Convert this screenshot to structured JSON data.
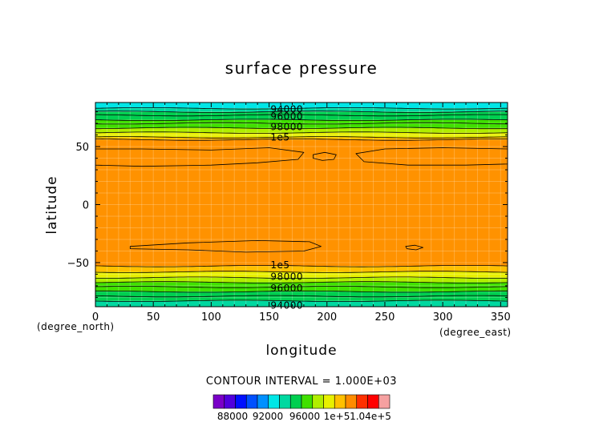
{
  "chart_data": {
    "type": "contour",
    "title": "surface pressure",
    "xlabel": "longitude",
    "ylabel": "latitude",
    "x_unit": "(degree_east)",
    "y_unit": "(degree_north)",
    "xlim": [
      0,
      356
    ],
    "ylim": [
      -88,
      88
    ],
    "x_ticks": [
      0,
      50,
      100,
      150,
      200,
      250,
      300,
      350
    ],
    "y_ticks": [
      -50,
      0,
      50
    ],
    "contour_interval_label": "CONTOUR INTERVAL = 1.000E+03",
    "pressure_by_latitude": [
      {
        "lat": -88,
        "value": 93000
      },
      {
        "lat": -82,
        "value": 94000
      },
      {
        "lat": -76,
        "value": 96000
      },
      {
        "lat": -68,
        "value": 97500
      },
      {
        "lat": -62,
        "value": 98500
      },
      {
        "lat": -57,
        "value": 99500
      },
      {
        "lat": -52,
        "value": 100000
      },
      {
        "lat": 52,
        "value": 100000
      },
      {
        "lat": 56,
        "value": 99500
      },
      {
        "lat": 61,
        "value": 98500
      },
      {
        "lat": 67,
        "value": 97500
      },
      {
        "lat": 75,
        "value": 96000
      },
      {
        "lat": 81,
        "value": 94000
      },
      {
        "lat": 88,
        "value": 93000
      }
    ],
    "contour_labels": [
      {
        "text": "94000",
        "lon": 118,
        "lat": 82
      },
      {
        "text": "96000",
        "lon": 118,
        "lat": 76
      },
      {
        "text": "98000",
        "lon": 118,
        "lat": 67
      },
      {
        "text": "1e5",
        "lon": 118,
        "lat": 58
      },
      {
        "text": "1e5",
        "lon": 118,
        "lat": -52
      },
      {
        "text": "98000",
        "lon": 118,
        "lat": -62
      },
      {
        "text": "96000",
        "lon": 118,
        "lat": -72
      },
      {
        "text": "94000",
        "lon": 118,
        "lat": -87
      }
    ],
    "contour_lines": [
      {
        "lat": 83
      },
      {
        "lat": 80
      },
      {
        "lat": 77
      },
      {
        "lat": 73
      },
      {
        "lat": 70
      },
      {
        "lat": 66
      },
      {
        "lat": 62
      },
      {
        "lat": 58
      },
      {
        "lat": 56
      },
      {
        "lat": -53
      },
      {
        "lat": -58
      },
      {
        "lat": -63
      },
      {
        "lat": -67
      },
      {
        "lat": -71
      },
      {
        "lat": -75
      },
      {
        "lat": -79
      },
      {
        "lat": -83
      }
    ],
    "closed_contours": [
      {
        "points": [
          [
            0,
            48
          ],
          [
            40,
            48
          ],
          [
            100,
            47
          ],
          [
            150,
            49
          ],
          [
            180,
            45
          ],
          [
            175,
            39
          ],
          [
            140,
            36
          ],
          [
            100,
            34
          ],
          [
            40,
            33
          ],
          [
            0,
            34
          ]
        ]
      },
      {
        "points": [
          [
            188,
            43
          ],
          [
            198,
            45
          ],
          [
            208,
            43
          ],
          [
            206,
            39
          ],
          [
            196,
            38
          ],
          [
            188,
            40
          ]
        ]
      },
      {
        "points": [
          [
            356,
            48
          ],
          [
            300,
            49
          ],
          [
            250,
            48
          ],
          [
            225,
            44
          ],
          [
            232,
            37
          ],
          [
            270,
            34
          ],
          [
            320,
            34
          ],
          [
            356,
            35
          ]
        ]
      },
      {
        "points": [
          [
            30,
            -36
          ],
          [
            80,
            -33
          ],
          [
            140,
            -31
          ],
          [
            185,
            -32
          ],
          [
            195,
            -36
          ],
          [
            180,
            -40
          ],
          [
            130,
            -41
          ],
          [
            80,
            -39
          ],
          [
            30,
            -38
          ]
        ]
      },
      {
        "points": [
          [
            268,
            -36
          ],
          [
            276,
            -35
          ],
          [
            283,
            -37
          ],
          [
            277,
            -39
          ],
          [
            269,
            -38
          ]
        ]
      }
    ],
    "colorbar": {
      "colors": [
        "#7a00c8",
        "#5000dd",
        "#0010ff",
        "#0050ff",
        "#0090ff",
        "#00e6e6",
        "#00d8a0",
        "#00cf50",
        "#40e000",
        "#b0ee00",
        "#e8f000",
        "#ffc000",
        "#ff8c00",
        "#ff3000",
        "#ff0000",
        "#f5a0a0"
      ],
      "tick_labels": [
        "88000",
        "92000",
        "96000",
        "1e+5",
        "1.04e+5"
      ]
    },
    "bands": [
      {
        "lat_min": 83,
        "lat_max": 88,
        "color": "#00e6e6"
      },
      {
        "lat_min": 80,
        "lat_max": 83,
        "color": "#00d8a0"
      },
      {
        "lat_min": 73,
        "lat_max": 80,
        "color": "#00cf50"
      },
      {
        "lat_min": 66,
        "lat_max": 73,
        "color": "#40e000"
      },
      {
        "lat_min": 62,
        "lat_max": 66,
        "color": "#b0ee00"
      },
      {
        "lat_min": 58,
        "lat_max": 62,
        "color": "#e8f000"
      },
      {
        "lat_min": 56,
        "lat_max": 58,
        "color": "#ffc000"
      },
      {
        "lat_min": -53,
        "lat_max": 56,
        "color": "#ff9200"
      },
      {
        "lat_min": -58,
        "lat_max": -53,
        "color": "#ffc000"
      },
      {
        "lat_min": -63,
        "lat_max": -58,
        "color": "#e8f000"
      },
      {
        "lat_min": -67,
        "lat_max": -63,
        "color": "#b0ee00"
      },
      {
        "lat_min": -75,
        "lat_max": -67,
        "color": "#40e000"
      },
      {
        "lat_min": -83,
        "lat_max": -75,
        "color": "#00cf50"
      },
      {
        "lat_min": -88,
        "lat_max": -83,
        "color": "#00d8a0"
      }
    ]
  }
}
